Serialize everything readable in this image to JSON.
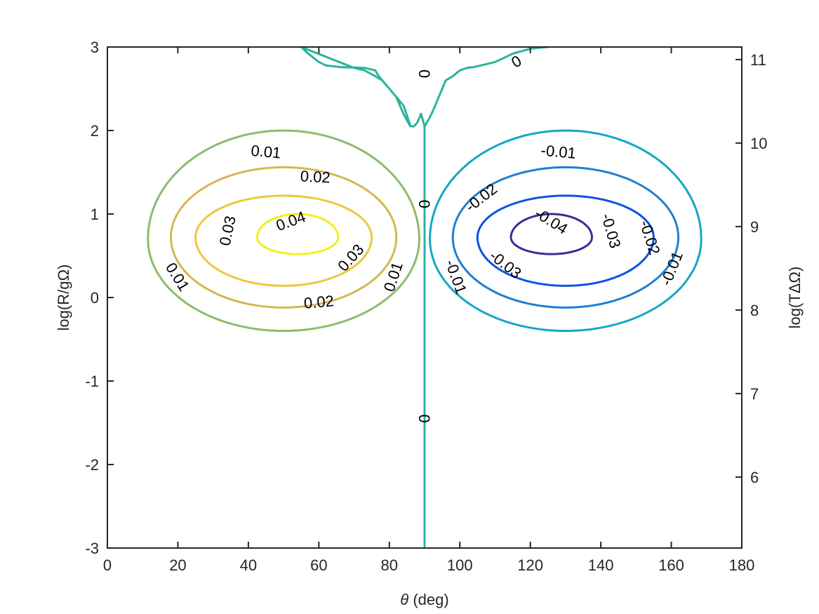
{
  "chart_data": {
    "type": "contour",
    "xlabel_symbol": "θ",
    "xlabel_text": " (deg)",
    "ylabel_left": "log(R/gΩ)",
    "ylabel_right": "log(TΔΩ)",
    "xlim": [
      0,
      180
    ],
    "ylim": [
      -3,
      3
    ],
    "ylim_right": [
      5.15,
      11.15
    ],
    "x_ticks": [
      "0",
      "20",
      "40",
      "60",
      "80",
      "100",
      "120",
      "140",
      "160",
      "180"
    ],
    "y_ticks": [
      "-3",
      "-2",
      "-1",
      "0",
      "1",
      "2",
      "3"
    ],
    "y_ticks_right": [
      "6",
      "7",
      "8",
      "9",
      "10",
      "11"
    ],
    "levels": [
      {
        "value": 0.04,
        "color": "#f2f01d",
        "center": [
          54,
          0.72
        ],
        "rx": 11.5,
        "ry_up": 0.28,
        "ry_down": 0.2,
        "labels": [
          {
            "text": "0.04",
            "x": 52,
            "y": 0.92,
            "angle": -20
          }
        ]
      },
      {
        "value": 0.03,
        "color": "#ecc93b",
        "center": [
          50,
          0.72
        ],
        "rx": 25,
        "ry_up": 0.5,
        "ry_down": 0.58,
        "labels": [
          {
            "text": "0.03",
            "x": 34,
            "y": 0.8,
            "angle": -78
          },
          {
            "text": "0.03",
            "x": 69,
            "y": 0.48,
            "angle": -48
          }
        ]
      },
      {
        "value": 0.02,
        "color": "#d5b751",
        "center": [
          50,
          0.72
        ],
        "rx": 32,
        "ry_up": 0.84,
        "ry_down": 0.84,
        "labels": [
          {
            "text": "0.02",
            "x": 59,
            "y": 1.45,
            "angle": 3
          },
          {
            "text": "0.02",
            "x": 60,
            "y": -0.05,
            "angle": -5
          }
        ]
      },
      {
        "value": 0.01,
        "color": "#8dbc6c",
        "center": [
          50,
          0.7
        ],
        "rx": 38.5,
        "ry_up": 1.3,
        "ry_down": 1.1,
        "labels": [
          {
            "text": "0.01",
            "x": 45,
            "y": 1.75,
            "angle": 5
          },
          {
            "text": "0.01",
            "x": 20,
            "y": 0.25,
            "angle": 58
          },
          {
            "text": "0.01",
            "x": 81,
            "y": 0.25,
            "angle": -72
          }
        ]
      },
      {
        "value": -0.01,
        "color": "#16a6c8",
        "center": [
          130,
          0.7
        ],
        "rx": 38.5,
        "ry_up": 1.3,
        "ry_down": 1.1,
        "labels": [
          {
            "text": "-0.01",
            "x": 128,
            "y": 1.75,
            "angle": 5
          },
          {
            "text": "-0.01",
            "x": 99,
            "y": 0.25,
            "angle": 70
          },
          {
            "text": "-0.01",
            "x": 160,
            "y": 0.35,
            "angle": -68
          }
        ]
      },
      {
        "value": -0.02,
        "color": "#1f7ed3",
        "center": [
          130,
          0.72
        ],
        "rx": 32,
        "ry_up": 0.84,
        "ry_down": 0.84,
        "labels": [
          {
            "text": "-0.02",
            "x": 106,
            "y": 1.2,
            "angle": -38
          },
          {
            "text": "-0.02",
            "x": 154,
            "y": 0.72,
            "angle": 72
          }
        ]
      },
      {
        "value": -0.03,
        "color": "#0a52e6",
        "center": [
          130,
          0.72
        ],
        "rx": 25,
        "ry_up": 0.5,
        "ry_down": 0.58,
        "labels": [
          {
            "text": "-0.03",
            "x": 113,
            "y": 0.4,
            "angle": 38
          },
          {
            "text": "-0.03",
            "x": 143,
            "y": 0.8,
            "angle": 74
          }
        ]
      },
      {
        "value": -0.04,
        "color": "#3a2c96",
        "center": [
          126,
          0.72
        ],
        "rx": 11.5,
        "ry_up": 0.28,
        "ry_down": 0.2,
        "labels": [
          {
            "text": "-0.04",
            "x": 126,
            "y": 0.92,
            "angle": 32
          }
        ]
      }
    ],
    "zero_contour": {
      "value": 0,
      "color": "#2cb39c",
      "vertical_x": 90,
      "top_curve_x": [
        86,
        86,
        85,
        84,
        82,
        80,
        78,
        77,
        76,
        73,
        66,
        62,
        60,
        57,
        55,
        70,
        73,
        76,
        78,
        80,
        82,
        83,
        84,
        85,
        86,
        87,
        88,
        89,
        90,
        91,
        92,
        93,
        94,
        95,
        96,
        98,
        100,
        102,
        104,
        106,
        108,
        110,
        112,
        115,
        120,
        125
      ],
      "top_curve_y": [
        2.05,
        2.05,
        2.18,
        2.3,
        2.4,
        2.5,
        2.6,
        2.65,
        2.72,
        2.75,
        2.76,
        2.78,
        2.82,
        2.92,
        3.0,
        2.75,
        2.72,
        2.65,
        2.6,
        2.5,
        2.4,
        2.3,
        2.2,
        2.12,
        2.05,
        2.05,
        2.1,
        2.2,
        2.05,
        2.12,
        2.2,
        2.3,
        2.4,
        2.5,
        2.6,
        2.65,
        2.72,
        2.75,
        2.76,
        2.78,
        2.8,
        2.82,
        2.86,
        2.92,
        2.98,
        3.0
      ],
      "labels": [
        {
          "text": "0",
          "x": 90,
          "y": 2.68,
          "angle": 90
        },
        {
          "text": "0",
          "x": 90,
          "y": 1.12,
          "angle": 90
        },
        {
          "text": "0",
          "x": 90,
          "y": -1.45,
          "angle": 90
        },
        {
          "text": "0",
          "x": 116,
          "y": 2.83,
          "angle": -30
        }
      ]
    },
    "grid": false,
    "colormap": "parula"
  }
}
